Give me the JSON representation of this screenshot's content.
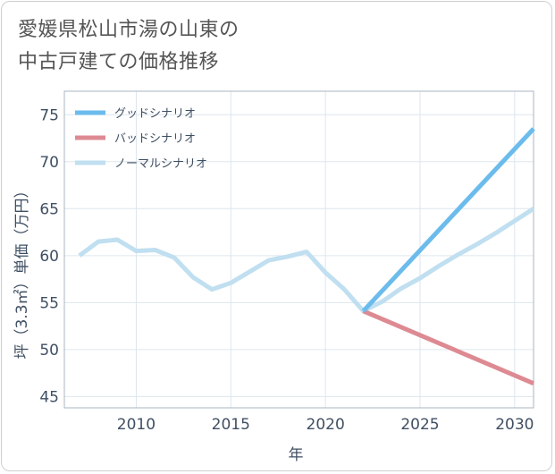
{
  "title_line1": "愛媛県松山市湯の山東の",
  "title_line2": "中古戸建ての価格推移",
  "chart_data": {
    "type": "line",
    "xlabel": "年",
    "ylabel": "坪（3.3㎡）単価（万円）",
    "xlim": [
      2006.2,
      2031
    ],
    "ylim": [
      43.8,
      77.5
    ],
    "xticks": [
      2010,
      2015,
      2020,
      2025,
      2030
    ],
    "yticks": [
      45,
      50,
      55,
      60,
      65,
      70,
      75
    ],
    "grid": true,
    "legend_position": "top-left",
    "series": [
      {
        "name": "グッドシナリオ",
        "color": "#6bbcec",
        "x": [
          2022,
          2031
        ],
        "y": [
          54.1,
          73.5
        ]
      },
      {
        "name": "バッドシナリオ",
        "color": "#dd8a93",
        "x": [
          2022,
          2031
        ],
        "y": [
          54.1,
          46.4
        ]
      },
      {
        "name": "ノーマルシナリオ",
        "color": "#c0dff0",
        "x": [
          2007,
          2008,
          2009,
          2010,
          2011,
          2012,
          2013,
          2014,
          2015,
          2016,
          2017,
          2018,
          2019,
          2020,
          2021,
          2022,
          2023,
          2024,
          2025,
          2026,
          2027,
          2028,
          2029,
          2030,
          2031
        ],
        "y": [
          60.0,
          61.5,
          61.7,
          60.5,
          60.6,
          59.8,
          57.7,
          56.4,
          57.1,
          58.3,
          59.5,
          59.9,
          60.4,
          58.2,
          56.4,
          54.1,
          55.1,
          56.5,
          57.6,
          58.9,
          60.1,
          61.2,
          62.4,
          63.7,
          65.0
        ]
      }
    ]
  }
}
